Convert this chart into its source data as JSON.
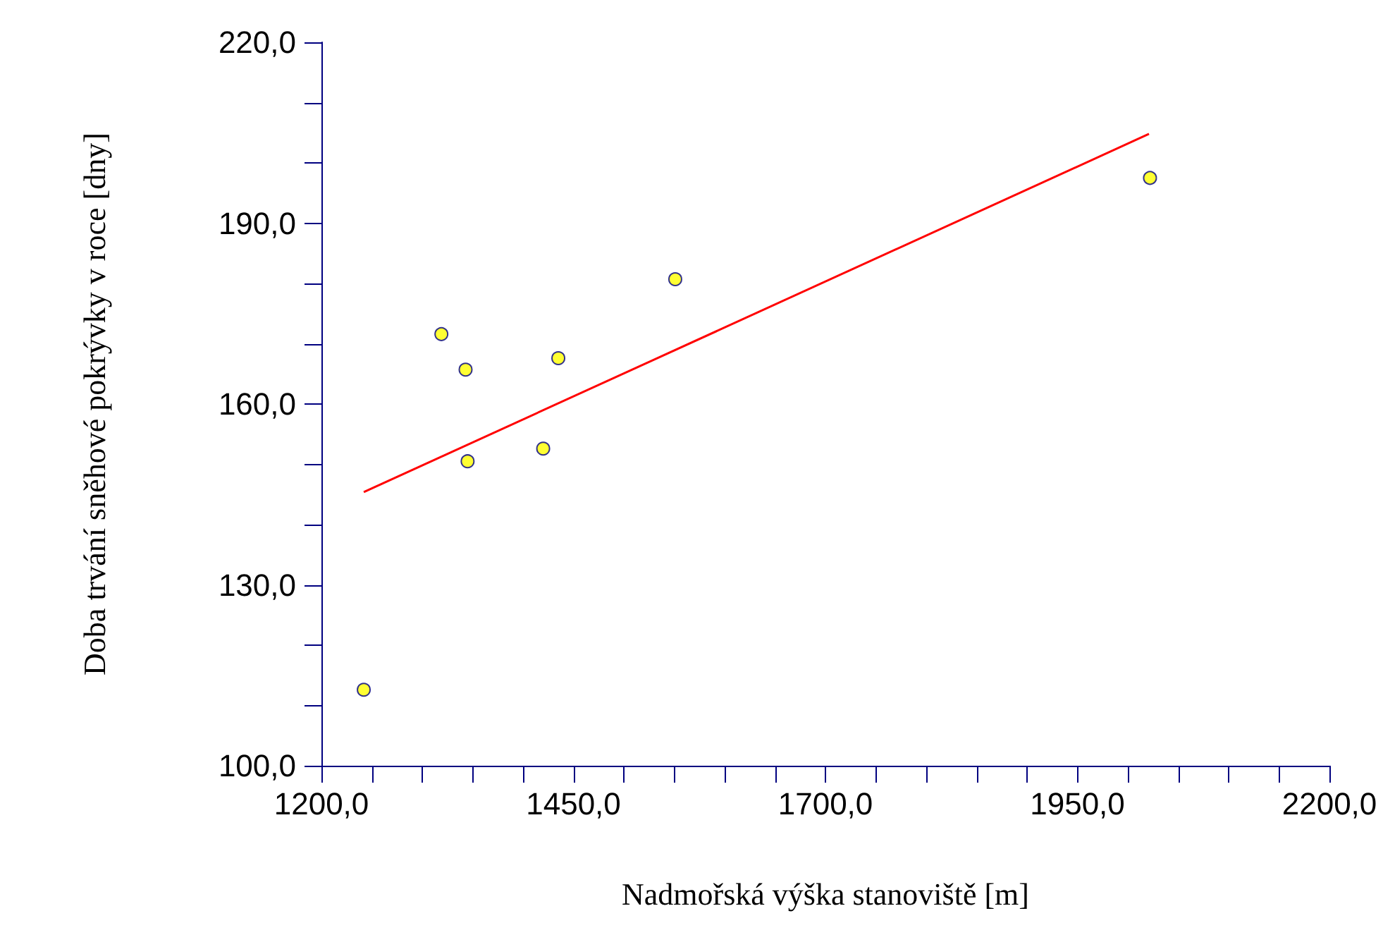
{
  "chart_data": {
    "type": "scatter",
    "xlabel": "Nadmořská výška stanoviště [m]",
    "ylabel": "Doba trvání sněhové pokrývky v roce [dny]",
    "xlim": [
      1200,
      2200
    ],
    "ylim": [
      100,
      220
    ],
    "xticks": [
      {
        "value": 1200,
        "label": "1200,0"
      },
      {
        "value": 1250,
        "label": null
      },
      {
        "value": 1300,
        "label": null
      },
      {
        "value": 1350,
        "label": null
      },
      {
        "value": 1400,
        "label": null
      },
      {
        "value": 1450,
        "label": "1450,0"
      },
      {
        "value": 1500,
        "label": null
      },
      {
        "value": 1550,
        "label": null
      },
      {
        "value": 1600,
        "label": null
      },
      {
        "value": 1650,
        "label": null
      },
      {
        "value": 1700,
        "label": "1700,0"
      },
      {
        "value": 1750,
        "label": null
      },
      {
        "value": 1800,
        "label": null
      },
      {
        "value": 1850,
        "label": null
      },
      {
        "value": 1900,
        "label": null
      },
      {
        "value": 1950,
        "label": "1950,0"
      },
      {
        "value": 2000,
        "label": null
      },
      {
        "value": 2050,
        "label": null
      },
      {
        "value": 2100,
        "label": null
      },
      {
        "value": 2150,
        "label": null
      },
      {
        "value": 2200,
        "label": "2200,0"
      }
    ],
    "yticks": [
      {
        "value": 100,
        "label": "100,0"
      },
      {
        "value": 110,
        "label": null
      },
      {
        "value": 120,
        "label": null
      },
      {
        "value": 130,
        "label": "130,0"
      },
      {
        "value": 140,
        "label": null
      },
      {
        "value": 150,
        "label": null
      },
      {
        "value": 160,
        "label": "160,0"
      },
      {
        "value": 170,
        "label": null
      },
      {
        "value": 180,
        "label": null
      },
      {
        "value": 190,
        "label": "190,0"
      },
      {
        "value": 200,
        "label": null
      },
      {
        "value": 210,
        "label": null
      },
      {
        "value": 220,
        "label": "220,0"
      }
    ],
    "grid": false,
    "series": [
      {
        "marker": "circle",
        "color": "#ffff00",
        "x": [
          1242,
          1319,
          1343,
          1345,
          1420,
          1435,
          1551,
          2022
        ],
        "values": [
          112.6,
          171.6,
          165.7,
          150.5,
          152.6,
          167.6,
          180.7,
          197.5
        ]
      },
      {
        "type": "line",
        "marker": "none",
        "color": "#ff0000",
        "x": [
          1242,
          2021
        ],
        "values": [
          145.4,
          204.8
        ]
      }
    ]
  }
}
